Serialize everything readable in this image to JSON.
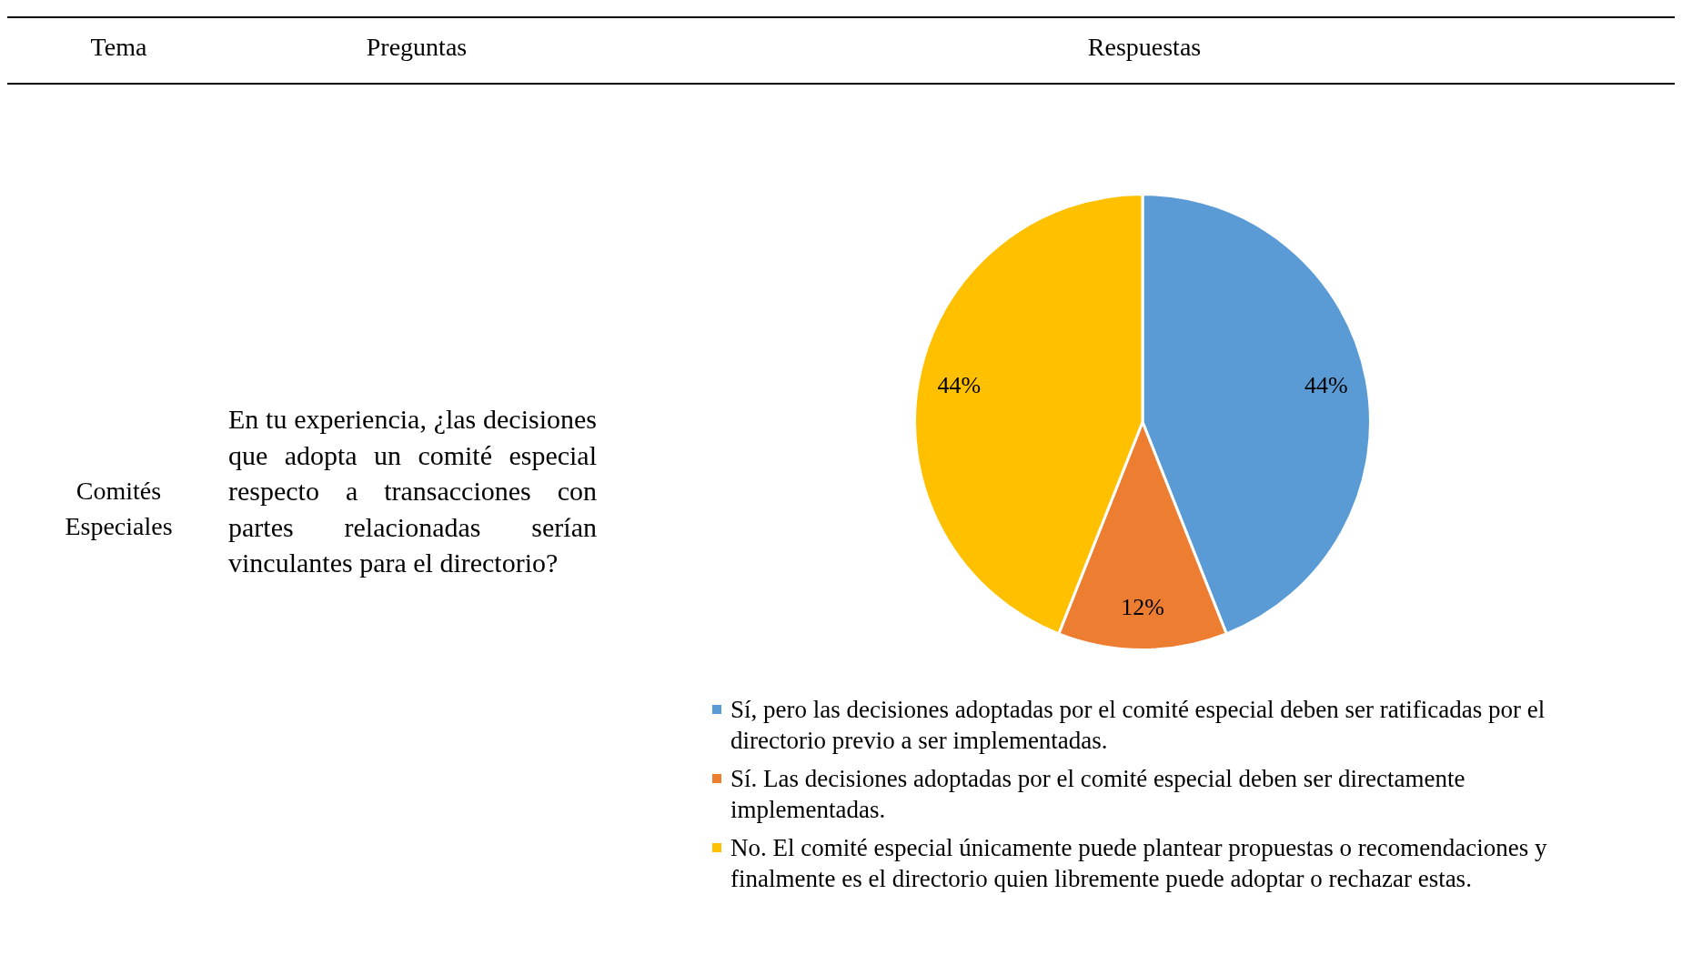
{
  "chart_data": {
    "type": "pie",
    "annotations": [
      "Tema",
      "Preguntas",
      "Respuestas",
      "Comités Especiales",
      "En tu experiencia, ¿las decisiones que adopta un comité especial respecto a transacciones con partes relacionadas serían vinculantes para el directorio?"
    ],
    "categories": [
      "Sí, pero las decisiones adoptadas por el comité especial deben ser ratificadas por el directorio previo a ser implementadas.",
      "Sí. Las decisiones adoptadas por el comité especial deben ser directamente implementadas.",
      "No. El comité especial únicamente puede plantear propuestas o recomendaciones y finalmente es el directorio quien libremente puede adoptar o rechazar estas."
    ],
    "values": [
      44,
      12,
      44
    ],
    "colors": [
      "#5b9bd5",
      "#ed7d31",
      "#ffc000"
    ],
    "value_labels": [
      "44%",
      "12%",
      "44%"
    ],
    "legend": "bottom"
  }
}
